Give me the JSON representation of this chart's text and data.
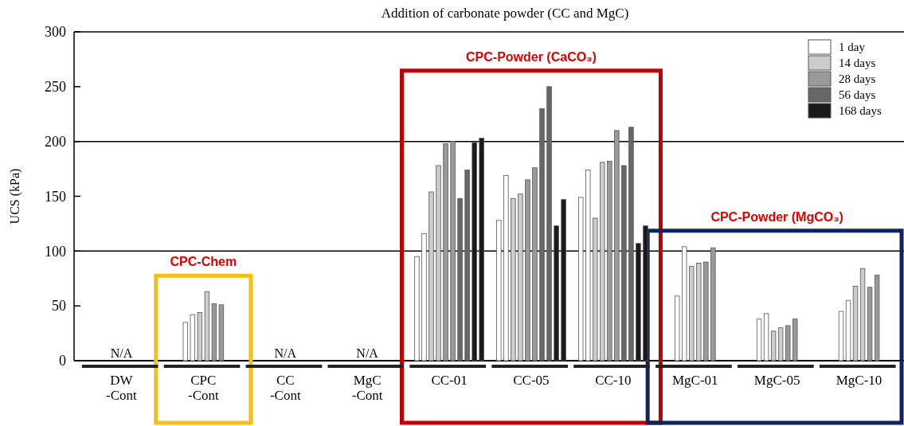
{
  "chart_data": {
    "type": "bar",
    "title": "Addition of carbonate powder (CC and MgC)",
    "ylabel": "UCS (kPa)",
    "categories": [
      "DW\n-Cont",
      "CPC\n-Cont",
      "CC\n-Cont",
      "MgC\n-Cont",
      "CC-01",
      "CC-05",
      "CC-10",
      "MgC-01",
      "MgC-05",
      "MgC-10"
    ],
    "series": [
      {
        "name": "1 day",
        "color": "#ffffff",
        "values": [
          null,
          35,
          null,
          null,
          95,
          128,
          149,
          59,
          38,
          45
        ]
      },
      {
        "color": "#ffffff",
        "values": [
          null,
          42,
          null,
          null,
          116,
          169,
          174,
          104,
          43,
          55
        ]
      },
      {
        "name": "14 days",
        "color": "#cccccc",
        "values": [
          null,
          44,
          null,
          null,
          154,
          148,
          130,
          86,
          27,
          68
        ]
      },
      {
        "color": "#cccccc",
        "values": [
          null,
          63,
          null,
          null,
          178,
          152,
          181,
          89,
          30,
          84
        ]
      },
      {
        "name": "28 days",
        "color": "#9a9a9a",
        "values": [
          null,
          52,
          null,
          null,
          198,
          165,
          182,
          90,
          32,
          67
        ]
      },
      {
        "color": "#9a9a9a",
        "values": [
          null,
          51,
          null,
          null,
          200,
          176,
          210,
          103,
          38,
          78
        ]
      },
      {
        "name": "56 days",
        "color": "#676767",
        "values": [
          null,
          null,
          null,
          null,
          148,
          230,
          178,
          null,
          null,
          null
        ]
      },
      {
        "color": "#676767",
        "values": [
          null,
          null,
          null,
          null,
          174,
          250,
          213,
          null,
          null,
          null
        ]
      },
      {
        "name": "168 days",
        "color": "#1a1a1a",
        "values": [
          null,
          null,
          null,
          null,
          199,
          123,
          107,
          null,
          null,
          null
        ]
      },
      {
        "color": "#1a1a1a",
        "values": [
          null,
          null,
          null,
          null,
          203,
          147,
          123,
          null,
          null,
          null
        ]
      }
    ],
    "ylim": [
      0,
      300
    ],
    "yticks": [
      0,
      50,
      100,
      150,
      200,
      250,
      300
    ],
    "ref_lines": [
      {
        "axis": "y",
        "value": 100,
        "color": "#000000"
      },
      {
        "axis": "y",
        "value": 200,
        "color": "#000000"
      }
    ],
    "legend": "top right",
    "annotations": [
      "N/A",
      "N/A",
      "N/A",
      "CPC-Chem",
      "CPC-Powder (CaCO₃)",
      "CPC-Powder (MgCO₃)"
    ]
  }
}
